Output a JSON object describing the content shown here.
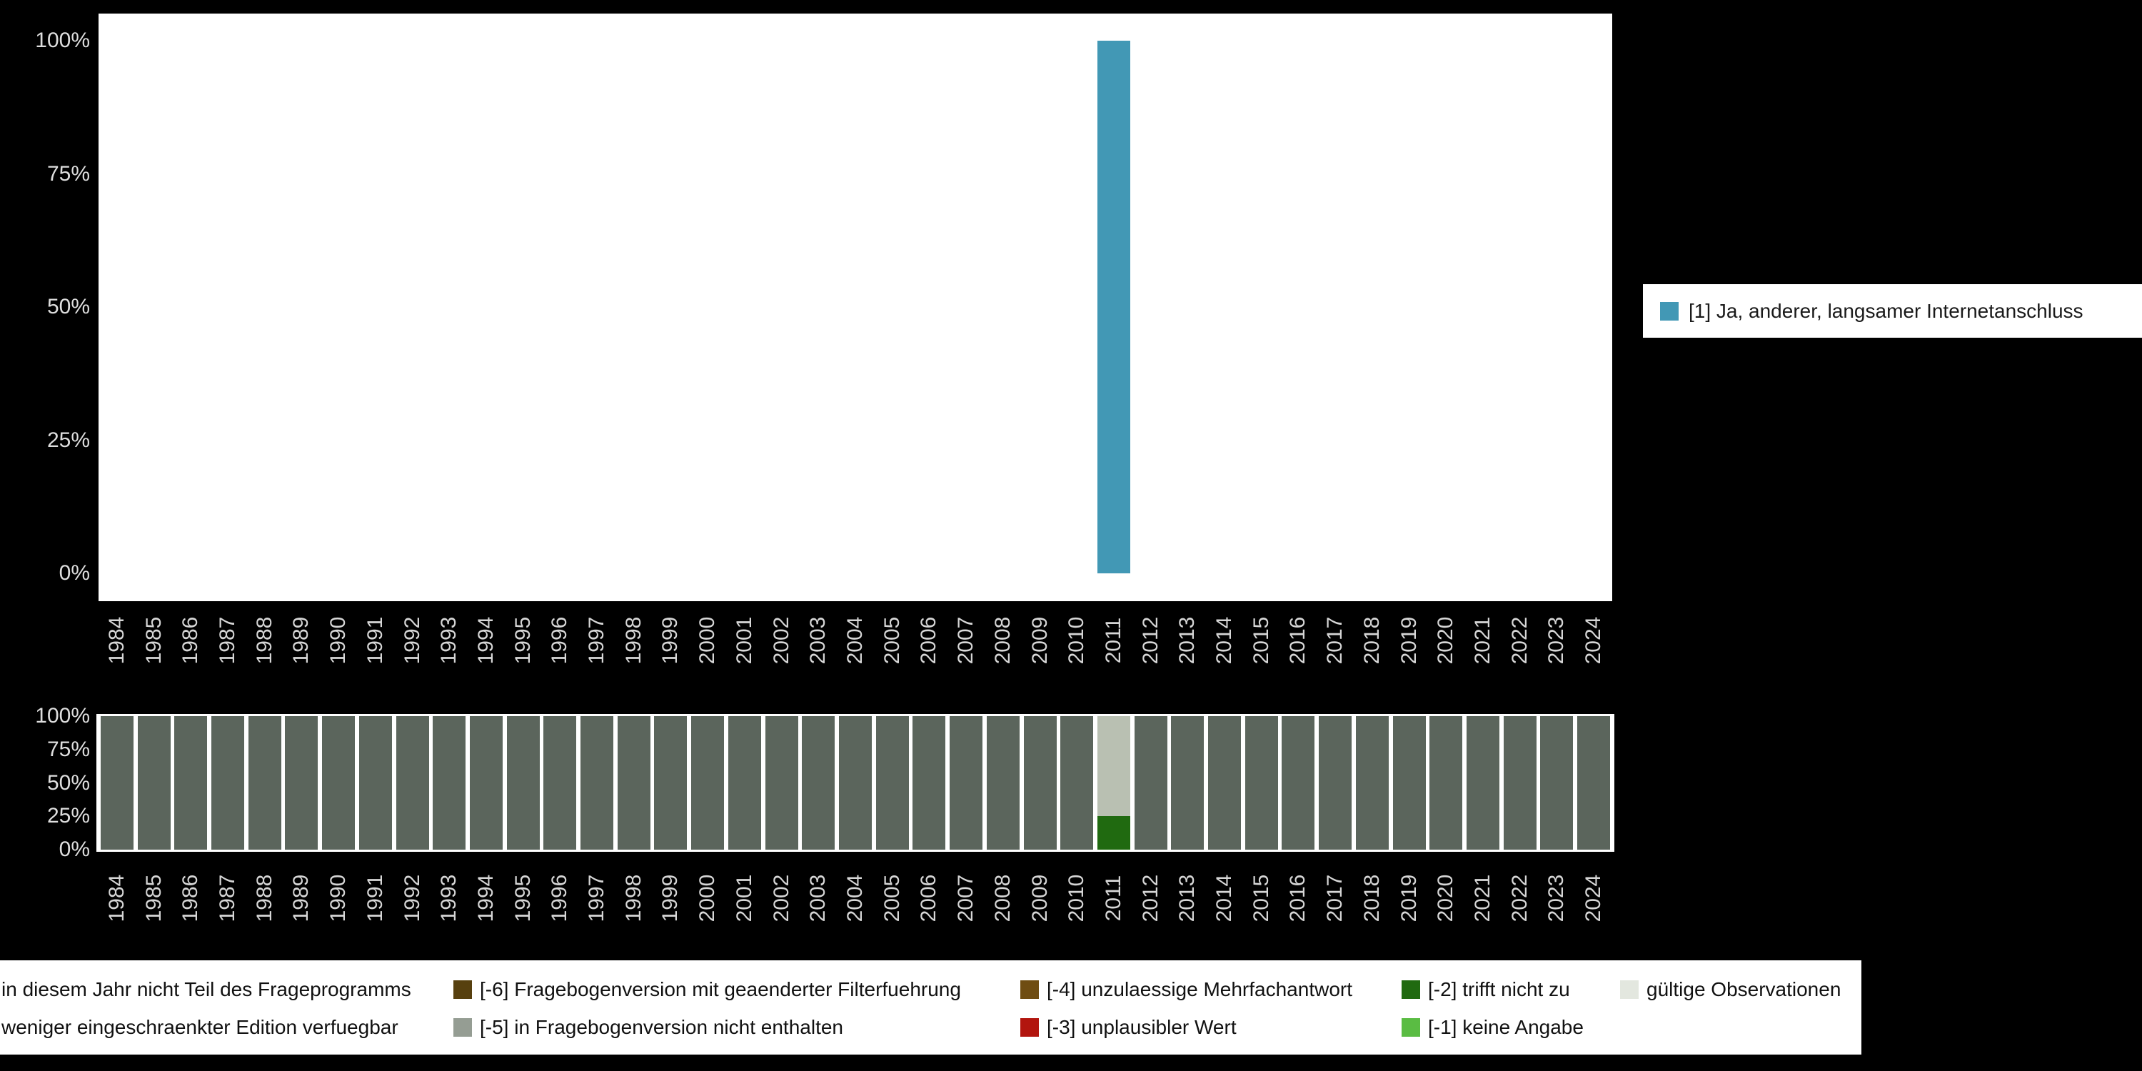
{
  "page": {
    "background": "#000000"
  },
  "axes": {
    "yticks": [
      "0%",
      "25%",
      "50%",
      "75%",
      "100%"
    ]
  },
  "main_legend": {
    "label": "[1] Ja, anderer, langsamer Internetanschluss",
    "color": "#4298b5"
  },
  "missings_legend": {
    "rows": [
      [
        {
          "label": "in diesem Jahr nicht Teil des Frageprogramms",
          "color": "#5b655c",
          "swatch_cut": true
        },
        {
          "label": "[-6] Fragebogenversion mit geaenderter Filterfuehrung",
          "color": "#57400f"
        },
        {
          "label": "[-4] unzulaessige Mehrfachantwort",
          "color": "#6f4d12"
        },
        {
          "label": "[-2] trifft nicht zu",
          "color": "#206a10"
        },
        {
          "label": "gültige Observationen",
          "color": "#e3e7df"
        }
      ],
      [
        {
          "label": "weniger eingeschraenkter Edition verfuegbar",
          "color": "#999f96",
          "swatch_cut": true
        },
        {
          "label": "[-5] in Fragebogenversion nicht enthalten",
          "color": "#959d93"
        },
        {
          "label": "[-3] unplausibler Wert",
          "color": "#b2150e"
        },
        {
          "label": "[-1] keine Angabe",
          "color": "#5abc43"
        }
      ]
    ]
  },
  "chart_data": [
    {
      "type": "bar",
      "title": "",
      "xlabel": "",
      "ylabel": "",
      "ylim": [
        0,
        100
      ],
      "yticks": [
        "0%",
        "25%",
        "50%",
        "75%",
        "100%"
      ],
      "legend_position": "right",
      "categories": [
        1984,
        1985,
        1986,
        1987,
        1988,
        1989,
        1990,
        1991,
        1992,
        1993,
        1994,
        1995,
        1996,
        1997,
        1998,
        1999,
        2000,
        2001,
        2002,
        2003,
        2004,
        2005,
        2006,
        2007,
        2008,
        2009,
        2010,
        2011,
        2012,
        2013,
        2014,
        2015,
        2016,
        2017,
        2018,
        2019,
        2020,
        2021,
        2022,
        2023,
        2024
      ],
      "series": [
        {
          "name": "[1] Ja, anderer, langsamer Internetanschluss",
          "color": "#4298b5",
          "values": [
            null,
            null,
            null,
            null,
            null,
            null,
            null,
            null,
            null,
            null,
            null,
            null,
            null,
            null,
            null,
            null,
            null,
            null,
            null,
            null,
            null,
            null,
            null,
            null,
            null,
            null,
            null,
            100,
            null,
            null,
            null,
            null,
            null,
            null,
            null,
            null,
            null,
            null,
            null,
            null,
            null
          ]
        }
      ]
    },
    {
      "type": "bar",
      "subtype": "stacked",
      "stack_order": "bottom-to-top",
      "title": "",
      "xlabel": "",
      "ylabel": "",
      "ylim": [
        0,
        100
      ],
      "yticks": [
        "0%",
        "25%",
        "50%",
        "75%",
        "100%"
      ],
      "legend_position": "bottom",
      "categories": [
        1984,
        1985,
        1986,
        1987,
        1988,
        1989,
        1990,
        1991,
        1992,
        1993,
        1994,
        1995,
        1996,
        1997,
        1998,
        1999,
        2000,
        2001,
        2002,
        2003,
        2004,
        2005,
        2006,
        2007,
        2008,
        2009,
        2010,
        2011,
        2012,
        2013,
        2014,
        2015,
        2016,
        2017,
        2018,
        2019,
        2020,
        2021,
        2022,
        2023,
        2024
      ],
      "series": [
        {
          "name": "[-2] trifft nicht zu",
          "color": "#206a10",
          "values": [
            0,
            0,
            0,
            0,
            0,
            0,
            0,
            0,
            0,
            0,
            0,
            0,
            0,
            0,
            0,
            0,
            0,
            0,
            0,
            0,
            0,
            0,
            0,
            0,
            0,
            0,
            0,
            25,
            0,
            0,
            0,
            0,
            0,
            0,
            0,
            0,
            0,
            0,
            0,
            0,
            0
          ]
        },
        {
          "name": "gültige Observationen",
          "color": "#b9c0b2",
          "values": [
            0,
            0,
            0,
            0,
            0,
            0,
            0,
            0,
            0,
            0,
            0,
            0,
            0,
            0,
            0,
            0,
            0,
            0,
            0,
            0,
            0,
            0,
            0,
            0,
            0,
            0,
            0,
            75,
            0,
            0,
            0,
            0,
            0,
            0,
            0,
            0,
            0,
            0,
            0,
            0,
            0
          ]
        },
        {
          "name": "in diesem Jahr nicht Teil des Frageprogramms",
          "color": "#5b655c",
          "values": [
            100,
            100,
            100,
            100,
            100,
            100,
            100,
            100,
            100,
            100,
            100,
            100,
            100,
            100,
            100,
            100,
            100,
            100,
            100,
            100,
            100,
            100,
            100,
            100,
            100,
            100,
            100,
            0,
            100,
            100,
            100,
            100,
            100,
            100,
            100,
            100,
            100,
            100,
            100,
            100,
            100
          ]
        }
      ]
    }
  ]
}
